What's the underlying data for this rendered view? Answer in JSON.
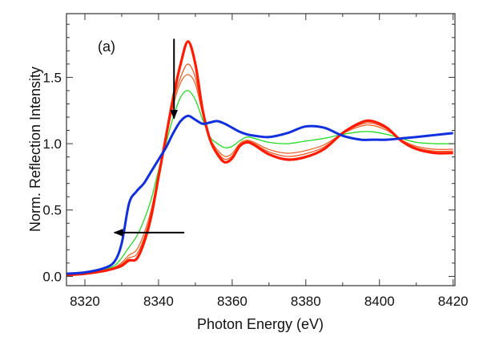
{
  "chart_data": {
    "type": "line",
    "title": "",
    "panel_label": "(a)",
    "xlabel": "Photon Energy (eV)",
    "ylabel": "Norm. Reflection Intensity",
    "xlim": [
      8315,
      8420.5
    ],
    "ylim": [
      -0.07,
      1.98
    ],
    "xticks": [
      8320,
      8340,
      8360,
      8380,
      8400,
      8420
    ],
    "xtick_labels": [
      "8320",
      "8340",
      "8360",
      "8380",
      "8400",
      "8420"
    ],
    "xminor": [
      8330,
      8350,
      8370,
      8390,
      8410
    ],
    "yticks": [
      0.0,
      0.5,
      1.0,
      1.5
    ],
    "ytick_labels": [
      "0.0",
      "0.5",
      "1.0",
      "1.5"
    ],
    "yminor_step": 0.1,
    "grid": false,
    "legend": "none",
    "x": [
      8315,
      8320,
      8325,
      8328,
      8330,
      8332,
      8334,
      8336,
      8338,
      8340,
      8342,
      8344,
      8346,
      8348,
      8350,
      8352,
      8354,
      8356,
      8358,
      8360,
      8362,
      8364,
      8366,
      8370,
      8375,
      8380,
      8385,
      8390,
      8395,
      8398,
      8402,
      8406,
      8410,
      8415,
      8420
    ],
    "series": [
      {
        "name": "green",
        "color": "#22dd22",
        "width": 1.3,
        "values": [
          0.015,
          0.025,
          0.05,
          0.08,
          0.14,
          0.22,
          0.3,
          0.42,
          0.58,
          0.8,
          1.0,
          1.2,
          1.35,
          1.4,
          1.33,
          1.18,
          1.05,
          1.0,
          0.97,
          0.98,
          1.02,
          1.05,
          1.04,
          1.01,
          1.0,
          1.02,
          1.04,
          1.07,
          1.09,
          1.09,
          1.07,
          1.04,
          1.01,
          1.0,
          1.0
        ]
      },
      {
        "name": "orange-1",
        "color": "#f05a1e",
        "width": 1.2,
        "values": [
          0.012,
          0.022,
          0.044,
          0.068,
          0.104,
          0.16,
          0.198,
          0.318,
          0.502,
          0.77,
          1.03,
          1.29,
          1.46,
          1.52,
          1.45,
          1.22,
          1.04,
          0.952,
          0.904,
          0.926,
          1.0,
          1.026,
          1.01,
          0.956,
          0.928,
          0.948,
          0.992,
          1.076,
          1.132,
          1.138,
          1.1,
          1.028,
          0.98,
          0.958,
          0.958
        ]
      },
      {
        "name": "orange-2",
        "color": "#f0501a",
        "width": 1.2,
        "values": [
          0.011,
          0.021,
          0.042,
          0.064,
          0.092,
          0.14,
          0.164,
          0.284,
          0.476,
          0.76,
          1.04,
          1.32,
          1.5,
          1.6,
          1.5,
          1.24,
          1.034,
          0.936,
          0.882,
          0.908,
          0.988,
          1.018,
          1.0,
          0.938,
          0.904,
          0.924,
          0.976,
          1.078,
          1.146,
          1.154,
          1.11,
          1.024,
          0.97,
          0.944,
          0.944
        ]
      },
      {
        "name": "red",
        "color": "#ff1a00",
        "width": 3.2,
        "values": [
          0.01,
          0.02,
          0.04,
          0.06,
          0.08,
          0.12,
          0.13,
          0.25,
          0.45,
          0.75,
          1.05,
          1.35,
          1.6,
          1.77,
          1.6,
          1.25,
          1.03,
          0.92,
          0.86,
          0.89,
          0.98,
          1.01,
          0.99,
          0.92,
          0.88,
          0.9,
          0.96,
          1.08,
          1.16,
          1.17,
          1.12,
          1.02,
          0.96,
          0.93,
          0.93
        ]
      },
      {
        "name": "blue",
        "color": "#1030e0",
        "width": 3.0,
        "values": [
          0.02,
          0.03,
          0.06,
          0.11,
          0.25,
          0.55,
          0.64,
          0.7,
          0.79,
          0.88,
          0.97,
          1.08,
          1.17,
          1.21,
          1.18,
          1.15,
          1.16,
          1.17,
          1.15,
          1.12,
          1.09,
          1.07,
          1.06,
          1.05,
          1.08,
          1.13,
          1.12,
          1.06,
          1.03,
          1.03,
          1.03,
          1.04,
          1.05,
          1.065,
          1.08
        ]
      }
    ],
    "annotations": [
      {
        "type": "arrow",
        "name": "down-arrow",
        "from": [
          8344.2,
          1.79
        ],
        "to": [
          8344.2,
          1.19
        ]
      },
      {
        "type": "arrow",
        "name": "left-arrow",
        "from": [
          8347,
          0.33
        ],
        "to": [
          8328,
          0.33
        ]
      }
    ]
  }
}
